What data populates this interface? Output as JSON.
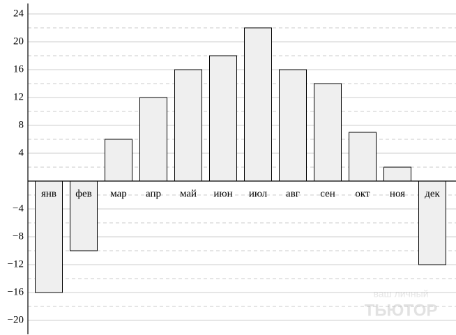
{
  "chart_data": {
    "type": "bar",
    "categories": [
      "янв",
      "фев",
      "мар",
      "апр",
      "май",
      "июн",
      "июл",
      "авг",
      "сен",
      "окт",
      "ноя",
      "дек"
    ],
    "values": [
      -16,
      -10,
      6,
      12,
      16,
      18,
      22,
      16,
      14,
      7,
      2,
      -12
    ],
    "color": "#efefef",
    "ylim": [
      -22,
      25.5
    ],
    "yticks": [
      {
        "value": -20,
        "label": "−20"
      },
      {
        "value": -16,
        "label": "−16"
      },
      {
        "value": -12,
        "label": "−12"
      },
      {
        "value": -8,
        "label": "−8"
      },
      {
        "value": -4,
        "label": "−4"
      },
      4,
      8,
      12,
      16,
      20,
      24
    ],
    "minor_yticks": [
      -18,
      -14,
      -10,
      -6,
      -2,
      2,
      6,
      10,
      14,
      18,
      22
    ],
    "grid": true,
    "watermark": [
      "ваш личный",
      "тьютор"
    ]
  }
}
